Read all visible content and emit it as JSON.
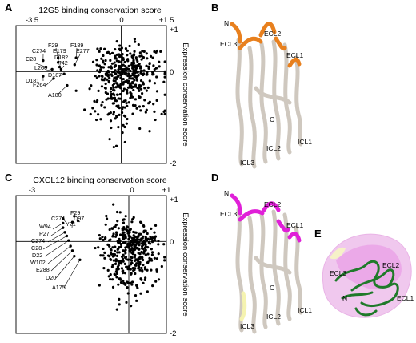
{
  "panels": {
    "A": {
      "letter": "A",
      "title": "12G5 binding conservation score",
      "x_ticks": [
        "-3.5",
        "0",
        "+1.5"
      ],
      "y_ticks": [
        "+1",
        "0",
        "-2"
      ],
      "ylabel": "Expression conservation score",
      "labels": [
        "C274",
        "F29",
        "F189",
        "E179",
        "E277",
        "C28",
        "D182",
        "P42",
        "L266",
        "D187",
        "D181",
        "F264",
        "A180"
      ]
    },
    "B": {
      "letter": "B",
      "labels": [
        "N",
        "ECL3",
        "ECL2",
        "ECL1",
        "C",
        "ICL1",
        "ICL2",
        "ICL3"
      ]
    },
    "C": {
      "letter": "C",
      "title": "CXCL12 binding conservation score",
      "x_ticks": [
        "-3",
        "0",
        "+1"
      ],
      "y_ticks": [
        "+1",
        "0",
        "-2"
      ],
      "ylabel": "Expression conservation score",
      "labels": [
        "F29",
        "C274",
        "D97",
        "W94",
        "Y21",
        "P27",
        "C274",
        "C28",
        "D22",
        "W102",
        "E288",
        "D20",
        "A175"
      ]
    },
    "D": {
      "letter": "D",
      "labels": [
        "N",
        "ECL3",
        "ECL2",
        "ECL1",
        "C",
        "ICL1",
        "ICL2",
        "ICL3"
      ]
    },
    "E": {
      "letter": "E",
      "labels": [
        "ECL3",
        "ECL2",
        "ECL1",
        "N"
      ]
    }
  },
  "colors": {
    "orange": "#e8801e",
    "magenta": "#e020d8",
    "green": "#1f7a2a",
    "pink": "#f0c8ee"
  },
  "chart_data": [
    {
      "type": "scatter",
      "title": "12G5 binding conservation score",
      "xlabel": "",
      "ylabel": "Expression conservation score",
      "xlim": [
        -3.5,
        1.5
      ],
      "ylim": [
        -2,
        1
      ],
      "grid": false,
      "cloud": {
        "n": 420,
        "x_center": 0.15,
        "x_sd": 0.55,
        "y_center": -0.1,
        "y_sd": 0.32,
        "seed": 7
      },
      "labeled_points": [
        {
          "name": "C274",
          "x": -2.6,
          "y": 0.24
        },
        {
          "name": "F29",
          "x": -2.1,
          "y": 0.3
        },
        {
          "name": "E179",
          "x": -2.1,
          "y": 0.2
        },
        {
          "name": "F189",
          "x": -1.5,
          "y": 0.3
        },
        {
          "name": "E277",
          "x": -1.55,
          "y": 0.15
        },
        {
          "name": "C28",
          "x": -2.5,
          "y": 0.1
        },
        {
          "name": "D182",
          "x": -2.05,
          "y": 0.1
        },
        {
          "name": "P42",
          "x": -2.0,
          "y": 0.05
        },
        {
          "name": "L266",
          "x": -2.3,
          "y": 0.05
        },
        {
          "name": "D187",
          "x": -1.9,
          "y": -0.05
        },
        {
          "name": "D181",
          "x": -2.6,
          "y": -0.1
        },
        {
          "name": "F264",
          "x": -2.25,
          "y": -0.15
        },
        {
          "name": "A180",
          "x": -1.8,
          "y": -0.3
        }
      ]
    },
    {
      "type": "scatter",
      "title": "CXCL12 binding conservation score",
      "xlabel": "",
      "ylabel": "Expression conservation score",
      "xlim": [
        -3,
        1
      ],
      "ylim": [
        -2,
        1
      ],
      "grid": false,
      "cloud": {
        "n": 400,
        "x_center": 0.05,
        "x_sd": 0.38,
        "y_center": -0.15,
        "y_sd": 0.3,
        "seed": 19
      },
      "labeled_points": [
        {
          "name": "F29",
          "x": -1.45,
          "y": 0.55
        },
        {
          "name": "C274",
          "x": -1.75,
          "y": 0.5
        },
        {
          "name": "D97",
          "x": -1.35,
          "y": 0.45
        },
        {
          "name": "W94",
          "x": -1.75,
          "y": 0.4
        },
        {
          "name": "Y21",
          "x": -1.5,
          "y": 0.42
        },
        {
          "name": "P27",
          "x": -1.75,
          "y": 0.3
        },
        {
          "name": "C274",
          "x": -1.7,
          "y": 0.2
        },
        {
          "name": "C28",
          "x": -1.65,
          "y": 0.12
        },
        {
          "name": "D22",
          "x": -1.6,
          "y": 0.02
        },
        {
          "name": "W102",
          "x": -1.55,
          "y": -0.1
        },
        {
          "name": "E288",
          "x": -1.5,
          "y": -0.2
        },
        {
          "name": "D20",
          "x": -1.45,
          "y": -0.32
        },
        {
          "name": "A175",
          "x": -1.3,
          "y": -0.4
        }
      ]
    }
  ]
}
